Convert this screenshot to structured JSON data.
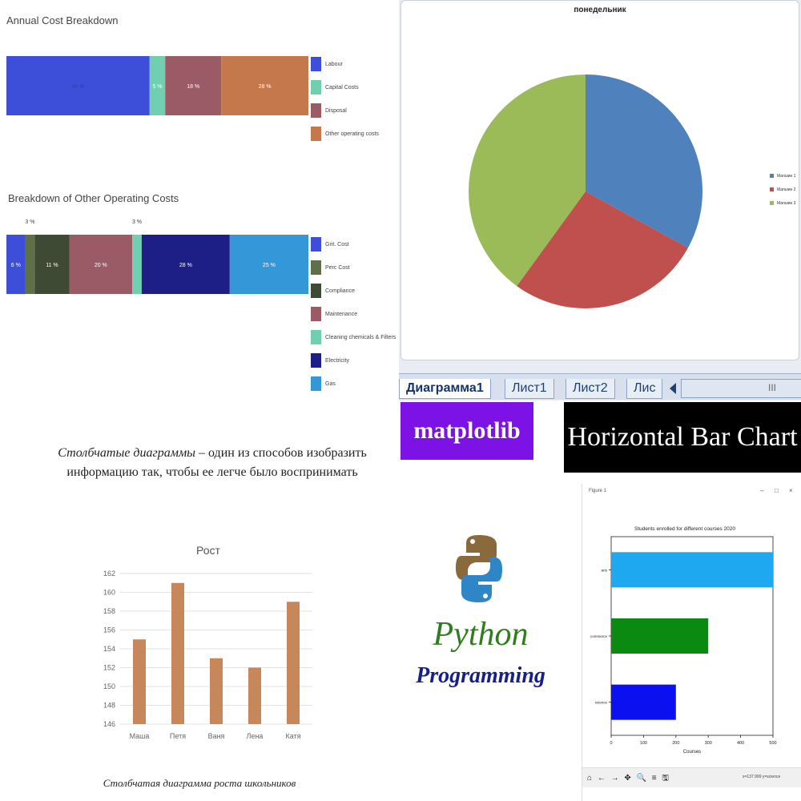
{
  "panel1": {
    "chart_data": [
      {
        "type": "bar",
        "orientation": "horizontal-stacked",
        "title": "Annual Cost Breakdown",
        "series": [
          {
            "name": "Labour",
            "value": 46,
            "label": "46 %",
            "color": "#3d4ed8"
          },
          {
            "name": "Capital Costs",
            "value": 5,
            "label": "5 %",
            "color": "#6fcfb0"
          },
          {
            "name": "Disposal",
            "value": 18,
            "label": "18 %",
            "color": "#9a5a66"
          },
          {
            "name": "Other operating costs",
            "value": 28,
            "label": "28 %",
            "color": "#c5784c"
          }
        ]
      },
      {
        "type": "bar",
        "orientation": "horizontal-stacked",
        "title": "Breakdown of Other Operating Costs",
        "series": [
          {
            "name": "Grit. Cost",
            "value": 6,
            "label": "6 %",
            "color": "#3d4ed8"
          },
          {
            "name": "Perc Cost",
            "value": 3,
            "label": "3 %",
            "color": "#5e7048"
          },
          {
            "name": "Compliance",
            "value": 11,
            "label": "11 %",
            "color": "#3f4a34"
          },
          {
            "name": "Maintenance",
            "value": 20,
            "label": "20 %",
            "color": "#9a5a66"
          },
          {
            "name": "Cleaning chemicals & Filters",
            "value": 3,
            "label": "3 %",
            "color": "#6fcfb0"
          },
          {
            "name": "Electricity",
            "value": 28,
            "label": "28 %",
            "color": "#1d1e86"
          },
          {
            "name": "Gas",
            "value": 25,
            "label": "25 %",
            "color": "#3498d8"
          }
        ]
      }
    ]
  },
  "panel2": {
    "chart_data": {
      "type": "pie",
      "title": "понедельник",
      "legend": "right",
      "series": [
        {
          "name": "Магазин 1",
          "value": 33,
          "color": "#4f81bd"
        },
        {
          "name": "Магазин 2",
          "value": 27,
          "color": "#c0504d"
        },
        {
          "name": "Магазин 3",
          "value": 40,
          "color": "#9bbb59"
        }
      ]
    },
    "tabs": [
      "Диаграмма1",
      "Лист1",
      "Лист2",
      "Лис"
    ],
    "scroll_grip": "III"
  },
  "panel3": {
    "intro_italic": "Столбчатые диаграммы",
    "intro_rest": " – один из способов изобразить информацию так, чтобы ее легче было воспринимать",
    "caption": "Столбчатая диаграмма роста школьников",
    "chart_data": {
      "type": "bar",
      "title": "Рост",
      "categories": [
        "Маша",
        "Петя",
        "Ваня",
        "Лена",
        "Катя"
      ],
      "values": [
        155,
        161,
        153,
        152,
        159
      ],
      "ylim": [
        146,
        162
      ],
      "yticks": [
        146,
        148,
        150,
        152,
        154,
        156,
        158,
        160,
        162
      ],
      "color": "#c8875a",
      "grid": true
    }
  },
  "panel4": {
    "badge_left": "matplotlib",
    "badge_right": "Horizontal Bar Chart",
    "python_word": "Python",
    "programming_word": "Programming",
    "window_title": "Figure 1",
    "toolbar_icons": "⌂ ← → ✥ 🔍 ≡ 🖫",
    "status_text": "x=137.999  y=science",
    "chart_data": {
      "type": "bar",
      "orientation": "horizontal",
      "title": "Students enrolled for different courses 2020",
      "xlabel": "Courses",
      "categories": [
        "arts",
        "commerce",
        "science"
      ],
      "values": [
        500,
        300,
        200
      ],
      "colors": [
        "#1ea8f0",
        "#0a8a10",
        "#0a10f0"
      ],
      "xlim": [
        0,
        500
      ],
      "xticks": [
        0,
        100,
        200,
        300,
        400,
        500
      ]
    }
  }
}
